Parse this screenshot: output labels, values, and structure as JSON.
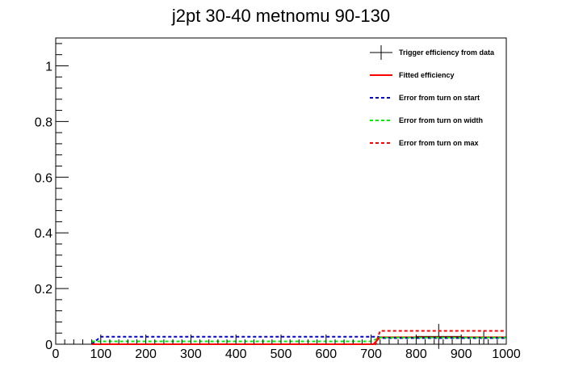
{
  "chart_data": {
    "type": "line",
    "title": "j2pt 30-40 metnomu 90-130",
    "xlabel": "",
    "ylabel": "",
    "xlim": [
      0,
      1000
    ],
    "ylim": [
      0,
      1.1
    ],
    "x_ticks": [
      0,
      100,
      200,
      300,
      400,
      500,
      600,
      700,
      800,
      900,
      1000
    ],
    "y_ticks": [
      0,
      0.2,
      0.4,
      0.6,
      0.8,
      1
    ],
    "x_tick_labels": [
      "0",
      "100",
      "200",
      "300",
      "400",
      "500",
      "600",
      "700",
      "800",
      "900",
      "1000"
    ],
    "y_tick_labels": [
      "0",
      "0.2",
      "0.4",
      "0.6",
      "0.8",
      "1"
    ],
    "legend_position": "top-right",
    "legend": [
      {
        "label": "Trigger efficiency from data",
        "color": "#000000",
        "style": "marker"
      },
      {
        "label": "Fitted efficiency",
        "color": "#ff0000",
        "style": "solid"
      },
      {
        "label": "Error from turn on start",
        "color": "#0000cc",
        "style": "dashed"
      },
      {
        "label": "Error from turn on width",
        "color": "#00ee00",
        "style": "dashed"
      },
      {
        "label": "Error from turn on max",
        "color": "#ff0000",
        "style": "dashed"
      }
    ],
    "series": [
      {
        "name": "Trigger efficiency from data",
        "type": "errorbar",
        "color": "#000000",
        "points": [
          {
            "x": 850,
            "xerr": 50,
            "y": 0.028,
            "yerr": 0.045
          },
          {
            "x": 950,
            "xerr": 50,
            "y": 0.024,
            "yerr": 0.025
          }
        ]
      },
      {
        "name": "Fitted efficiency",
        "color": "#ff0000",
        "dashed": false,
        "x": [
          80,
          705,
          720,
          1000
        ],
        "y": [
          0.0,
          0.0,
          0.025,
          0.025
        ]
      },
      {
        "name": "Error from turn on start",
        "color": "#0000cc",
        "dashed": true,
        "x": [
          80,
          100,
          715,
          725,
          1000
        ],
        "y": [
          0.0,
          0.027,
          0.027,
          0.022,
          0.022
        ]
      },
      {
        "name": "Error from turn on width",
        "color": "#00ee00",
        "dashed": true,
        "x": [
          80,
          700,
          720,
          1000
        ],
        "y": [
          0.01,
          0.01,
          0.024,
          0.024
        ]
      },
      {
        "name": "Error from turn on max",
        "color": "#ff0000",
        "dashed": true,
        "x": [
          80,
          710,
          720,
          1000
        ],
        "y": [
          0.0,
          0.0,
          0.048,
          0.048
        ]
      }
    ]
  }
}
